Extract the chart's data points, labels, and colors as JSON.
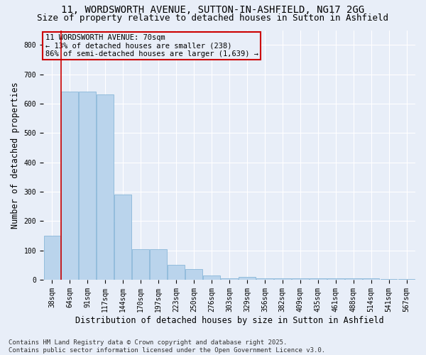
{
  "title_line1": "11, WORDSWORTH AVENUE, SUTTON-IN-ASHFIELD, NG17 2GG",
  "title_line2": "Size of property relative to detached houses in Sutton in Ashfield",
  "xlabel": "Distribution of detached houses by size in Sutton in Ashfield",
  "ylabel": "Number of detached properties",
  "footer_line1": "Contains HM Land Registry data © Crown copyright and database right 2025.",
  "footer_line2": "Contains public sector information licensed under the Open Government Licence v3.0.",
  "categories": [
    "38sqm",
    "64sqm",
    "91sqm",
    "117sqm",
    "144sqm",
    "170sqm",
    "197sqm",
    "223sqm",
    "250sqm",
    "276sqm",
    "303sqm",
    "329sqm",
    "356sqm",
    "382sqm",
    "409sqm",
    "435sqm",
    "461sqm",
    "488sqm",
    "514sqm",
    "541sqm",
    "567sqm"
  ],
  "bar_values": [
    150,
    640,
    640,
    630,
    290,
    105,
    105,
    50,
    35,
    15,
    5,
    10,
    5,
    5,
    5,
    5,
    5,
    5,
    5,
    2,
    2
  ],
  "bar_color": "#bad4ec",
  "bar_edgecolor": "#7aafd4",
  "background_color": "#e8eef8",
  "grid_color": "#ffffff",
  "annotation_text": "11 WORDSWORTH AVENUE: 70sqm\n← 13% of detached houses are smaller (238)\n86% of semi-detached houses are larger (1,639) →",
  "annotation_box_facecolor": "#e8eef8",
  "annotation_box_edgecolor": "#cc0000",
  "vline_color": "#cc0000",
  "vline_x_index": 1,
  "ylim": [
    0,
    850
  ],
  "yticks": [
    0,
    100,
    200,
    300,
    400,
    500,
    600,
    700,
    800
  ],
  "title_fontsize": 10,
  "subtitle_fontsize": 9,
  "axis_label_fontsize": 8.5,
  "tick_fontsize": 7,
  "annotation_fontsize": 7.5,
  "footer_fontsize": 6.5
}
